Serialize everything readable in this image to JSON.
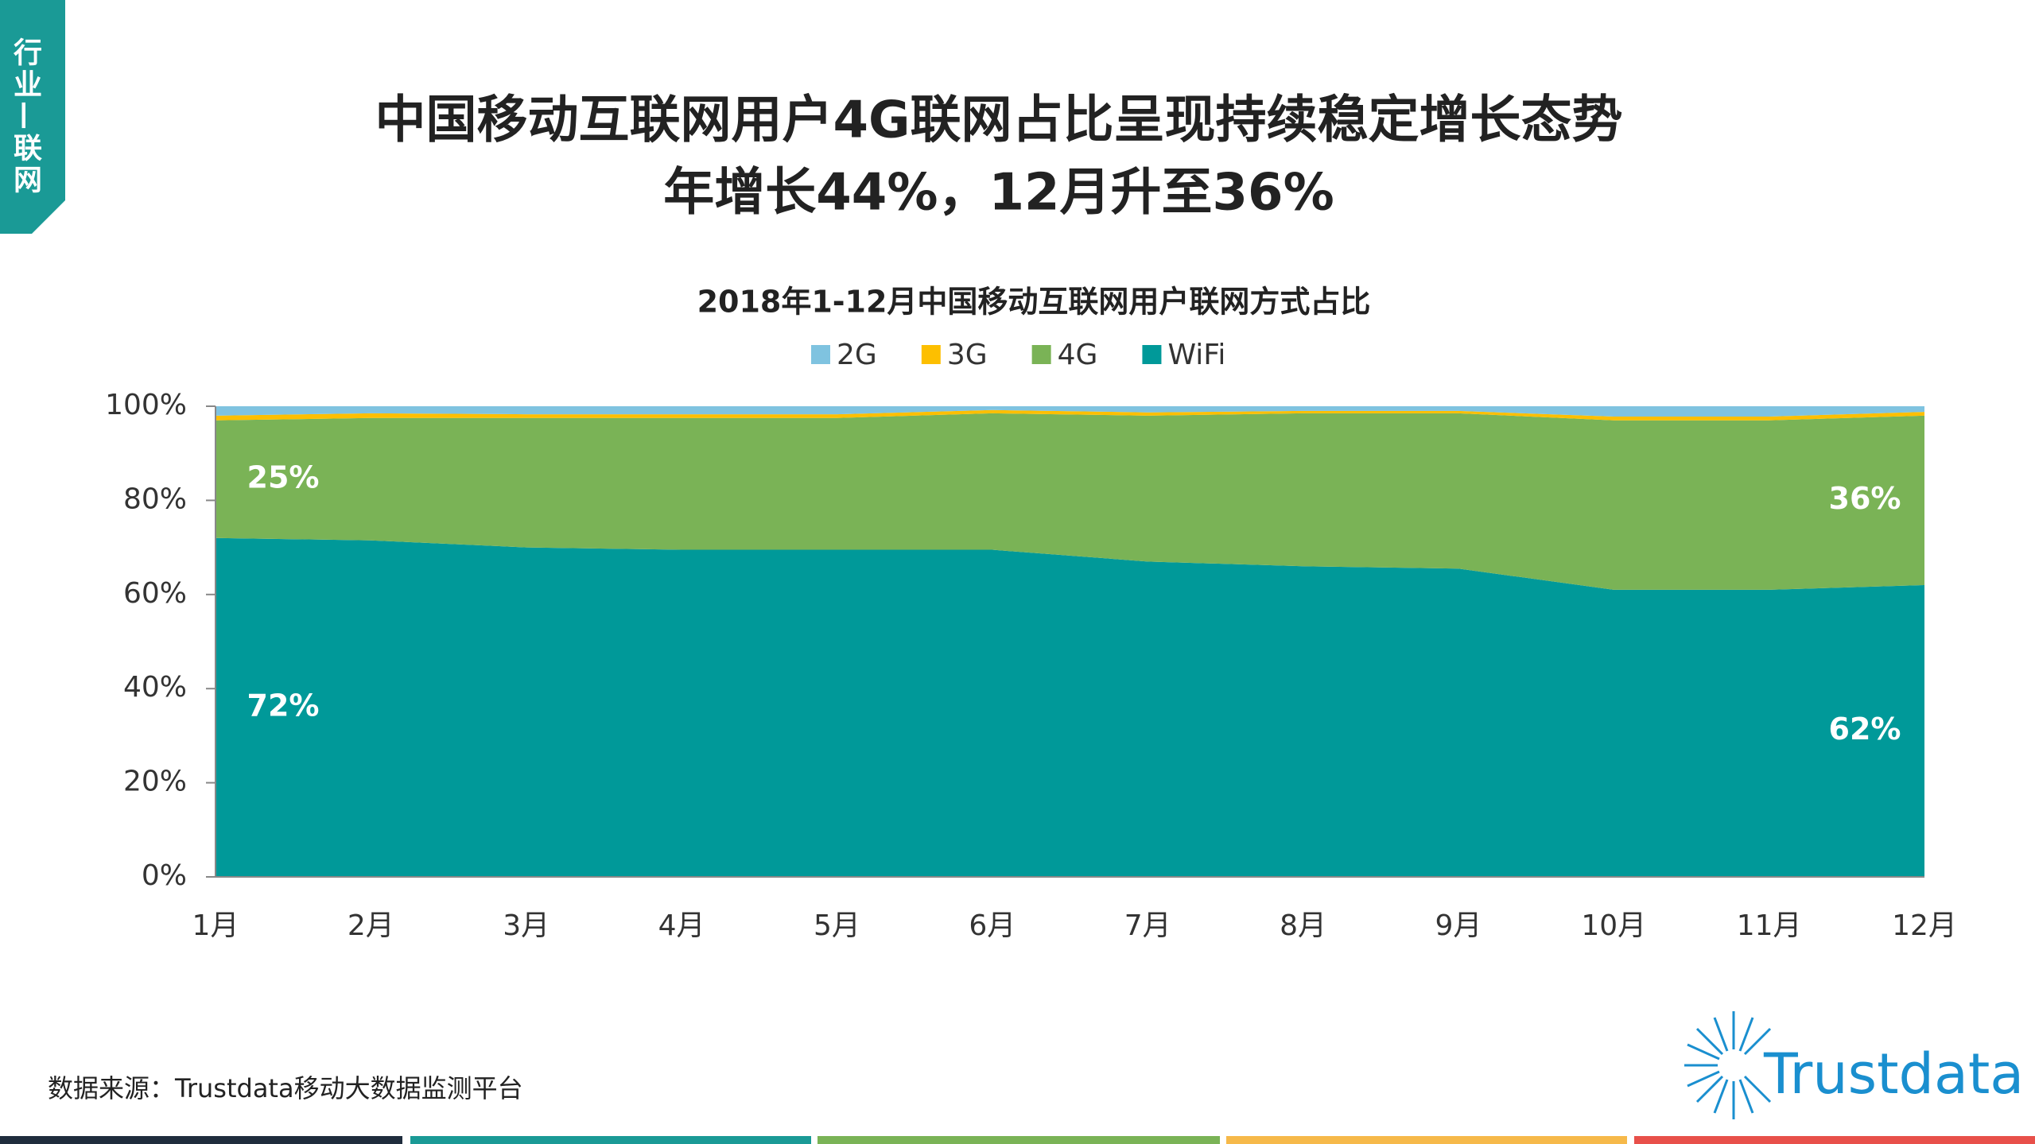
{
  "header": {
    "tab": "行业—联网",
    "title": [
      "中国移动互联网用户4G联网占比呈现持续稳定增长态势",
      "年增长44%，12月升至36%"
    ]
  },
  "footer": {
    "source": "数据来源：Trustdata移动大数据监测平台",
    "logo": "Trustdata"
  },
  "chart_data": {
    "type": "stacked_area",
    "title": "2018年1-12月中国移动互联网用户联网方式占比",
    "categories": [
      "1月",
      "2月",
      "3月",
      "4月",
      "5月",
      "6月",
      "7月",
      "8月",
      "9月",
      "10月",
      "11月",
      "12月"
    ],
    "series": [
      {
        "name": "WiFi",
        "color": "#009999",
        "values": [
          72,
          71.5,
          70,
          69.5,
          69.5,
          69.5,
          67,
          66,
          65.5,
          61,
          61,
          62
        ],
        "value_labels": [
          "72%",
          null,
          null,
          null,
          null,
          null,
          null,
          null,
          null,
          null,
          null,
          "62%"
        ]
      },
      {
        "name": "4G",
        "color": "#7ab356",
        "values": [
          25,
          26,
          27.5,
          28,
          28,
          29,
          31,
          32.5,
          33,
          36,
          36,
          36
        ],
        "value_labels": [
          "25%",
          null,
          null,
          null,
          null,
          null,
          null,
          null,
          null,
          null,
          null,
          "36%"
        ]
      },
      {
        "name": "3G",
        "color": "#fdbf00",
        "values": [
          1,
          1,
          0.8,
          0.8,
          0.8,
          0.7,
          0.7,
          0.5,
          0.5,
          0.8,
          0.8,
          0.8
        ]
      },
      {
        "name": "2G",
        "color": "#7fc3e0",
        "values": [
          2,
          1.5,
          1.7,
          1.7,
          1.7,
          0.8,
          1.3,
          1,
          1,
          2.2,
          2.2,
          1.2
        ]
      }
    ],
    "legend_order": [
      "2G",
      "3G",
      "4G",
      "WiFi"
    ],
    "ylim": [
      0,
      100
    ],
    "yticks": [
      {
        "value": 0,
        "label": "0%"
      },
      {
        "value": 20,
        "label": "20%"
      },
      {
        "value": 40,
        "label": "40%"
      },
      {
        "value": 60,
        "label": "60%"
      },
      {
        "value": 80,
        "label": "80%"
      },
      {
        "value": 100,
        "label": "100%"
      }
    ],
    "grid": false
  }
}
